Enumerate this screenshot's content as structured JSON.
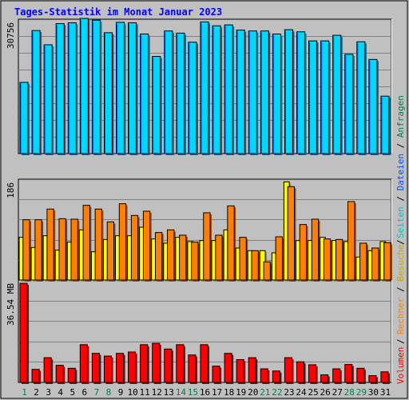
{
  "title": "Tages-Statistik im Monat Januar 2023",
  "colors": {
    "background": "#c0c0c0",
    "title": "#0000ff",
    "hits": "#00d8ff",
    "hits_shade": "#0070a0",
    "files": "#0050ff",
    "pages": "#00c8c8",
    "visits": "#ffff00",
    "visits_shade": "#a0a000",
    "sites": "#ff8000",
    "sites_shade": "#a05000",
    "volume": "#ff0000",
    "volume_shade": "#900000",
    "weekend_label": "#00804a",
    "weekday_label": "#000000",
    "separator": "#000000"
  },
  "right_labels": {
    "top": [
      "Anfragen",
      "Dateien",
      "Seiten"
    ],
    "middle": [
      "Besuche",
      "Rechner"
    ],
    "bottom": [
      "Volumen"
    ],
    "separator": " / "
  },
  "chart_data": [
    {
      "type": "bar",
      "panel": "hits",
      "max_label": "30756",
      "ymax": 30756,
      "categories": [
        "1",
        "2",
        "3",
        "4",
        "5",
        "6",
        "7",
        "8",
        "9",
        "10",
        "11",
        "12",
        "13",
        "14",
        "15",
        "16",
        "17",
        "18",
        "19",
        "20",
        "21",
        "22",
        "23",
        "24",
        "25",
        "26",
        "27",
        "28",
        "29",
        "30",
        "31"
      ],
      "weekend_days": [
        1,
        7,
        8,
        14,
        15,
        21,
        22,
        28,
        29
      ],
      "series": [
        {
          "name": "Anfragen",
          "values": [
            16500,
            28500,
            25200,
            30100,
            30300,
            31300,
            30900,
            28000,
            30400,
            30300,
            27700,
            22500,
            28400,
            27900,
            25800,
            30500,
            29600,
            29800,
            28600,
            28400,
            28400,
            27700,
            28700,
            28200,
            26100,
            26100,
            27400,
            23000,
            25900,
            21800,
            13300
          ]
        },
        {
          "name": "Dateien",
          "values": [
            16200,
            28100,
            24900,
            29700,
            30000,
            30900,
            30600,
            27700,
            30000,
            30000,
            27400,
            22200,
            28100,
            27600,
            25500,
            30200,
            29300,
            29500,
            28300,
            28100,
            28100,
            27400,
            28400,
            27900,
            25800,
            25800,
            27100,
            22700,
            25600,
            21500,
            13000
          ]
        },
        {
          "name": "Seiten",
          "values": [
            16000,
            27900,
            24700,
            29500,
            29800,
            30700,
            30400,
            27500,
            29800,
            29800,
            27200,
            22000,
            27900,
            27400,
            25300,
            30000,
            29100,
            29300,
            28100,
            27900,
            27900,
            27200,
            28200,
            27700,
            25600,
            25600,
            26900,
            22500,
            25400,
            21300,
            12800
          ]
        }
      ]
    },
    {
      "type": "bar",
      "panel": "visits-sites",
      "max_label": "186",
      "ymax": 186,
      "categories": [
        "1",
        "2",
        "3",
        "4",
        "5",
        "6",
        "7",
        "8",
        "9",
        "10",
        "11",
        "12",
        "13",
        "14",
        "15",
        "16",
        "17",
        "18",
        "19",
        "20",
        "21",
        "22",
        "23",
        "24",
        "25",
        "26",
        "27",
        "28",
        "29",
        "30",
        "31"
      ],
      "weekend_days": [
        1,
        7,
        8,
        14,
        15,
        21,
        22,
        28,
        29
      ],
      "series": [
        {
          "name": "Besuche",
          "values": [
            80,
            61,
            83,
            56,
            71,
            94,
            53,
            76,
            83,
            83,
            99,
            77,
            69,
            80,
            72,
            74,
            74,
            94,
            60,
            55,
            55,
            51,
            184,
            74,
            74,
            80,
            74,
            72,
            43,
            55,
            72
          ]
        },
        {
          "name": "Rechner",
          "values": [
            113,
            113,
            133,
            115,
            114,
            140,
            133,
            109,
            143,
            121,
            129,
            89,
            94,
            84,
            71,
            126,
            84,
            139,
            80,
            55,
            34,
            81,
            175,
            104,
            114,
            77,
            76,
            147,
            69,
            60,
            70
          ]
        }
      ]
    },
    {
      "type": "bar",
      "panel": "volume",
      "max_label": "36.54 MB",
      "ymax": 36.54,
      "categories": [
        "1",
        "2",
        "3",
        "4",
        "5",
        "6",
        "7",
        "8",
        "9",
        "10",
        "11",
        "12",
        "13",
        "14",
        "15",
        "16",
        "17",
        "18",
        "19",
        "20",
        "21",
        "22",
        "23",
        "24",
        "25",
        "26",
        "27",
        "28",
        "29",
        "30",
        "31"
      ],
      "weekend_days": [
        1,
        7,
        8,
        14,
        15,
        21,
        22,
        28,
        29
      ],
      "series": [
        {
          "name": "Volumen",
          "values": [
            36.5,
            4.8,
            9.1,
            6.3,
            5.2,
            13.9,
            10.7,
            9.7,
            10.7,
            11.2,
            13.9,
            14.4,
            12.3,
            13.9,
            10.1,
            13.9,
            6.0,
            10.7,
            8.4,
            9.1,
            5.0,
            4.2,
            9.1,
            7.6,
            6.5,
            2.8,
            5.0,
            6.6,
            5.2,
            2.5,
            3.9
          ]
        }
      ]
    }
  ]
}
